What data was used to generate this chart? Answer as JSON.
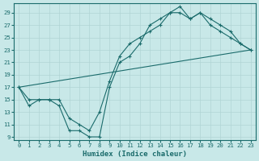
{
  "xlabel": "Humidex (Indice chaleur)",
  "bg_color": "#c8e8e8",
  "line_color": "#1a6b6b",
  "grid_color": "#b0d4d4",
  "xlim": [
    -0.5,
    23.5
  ],
  "ylim": [
    8.5,
    30.5
  ],
  "xticks": [
    0,
    1,
    2,
    3,
    4,
    5,
    6,
    7,
    8,
    9,
    10,
    11,
    12,
    13,
    14,
    15,
    16,
    17,
    18,
    19,
    20,
    21,
    22,
    23
  ],
  "yticks": [
    9,
    11,
    13,
    15,
    17,
    19,
    21,
    23,
    25,
    27,
    29
  ],
  "line1_x": [
    0,
    1,
    2,
    3,
    4,
    5,
    6,
    7,
    8,
    9,
    10,
    11,
    12,
    13,
    14,
    15,
    16,
    17,
    18,
    19,
    20,
    21,
    22,
    23
  ],
  "line1_y": [
    17,
    14,
    15,
    15,
    14,
    10,
    10,
    9,
    9,
    17,
    21,
    22,
    24,
    27,
    28,
    29,
    29,
    28,
    29,
    28,
    27,
    26,
    24,
    23
  ],
  "line2_x": [
    0,
    1,
    2,
    3,
    4,
    5,
    6,
    7,
    8,
    9,
    10,
    11,
    12,
    13,
    14,
    15,
    16,
    17,
    18,
    19,
    20,
    21,
    22,
    23
  ],
  "line2_y": [
    17,
    15,
    15,
    15,
    15,
    12,
    11,
    10,
    13,
    18,
    22,
    24,
    25,
    26,
    27,
    29,
    30,
    28,
    29,
    27,
    26,
    25,
    24,
    23
  ],
  "line3_x": [
    0,
    23
  ],
  "line3_y": [
    17,
    23
  ],
  "xlabel_fontsize": 6.5,
  "tick_fontsize": 5.2
}
